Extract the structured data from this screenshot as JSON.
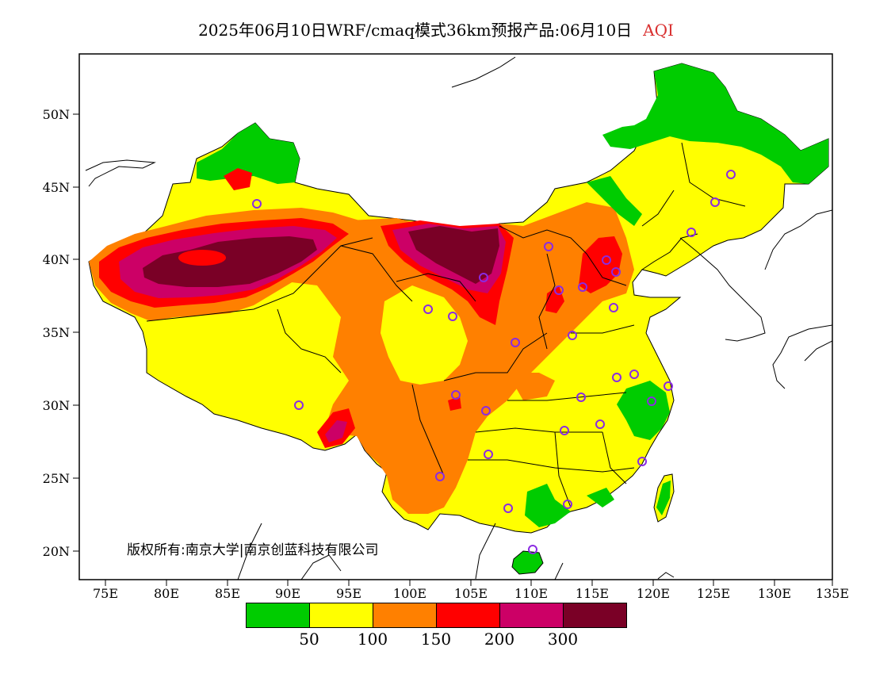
{
  "title": {
    "text": "2025年06月10日WRF/cmaq模式36km预报产品:06月10日",
    "variable": "AQI",
    "variable_color": "#d93030"
  },
  "copyright": "版权所有:南京大学|南京创蓝科技有限公司",
  "axes": {
    "lon_labels": [
      "75E",
      "80E",
      "85E",
      "90E",
      "95E",
      "100E",
      "105E",
      "110E",
      "115E",
      "120E",
      "125E",
      "130E",
      "135E"
    ],
    "lat_labels": [
      "50N",
      "45N",
      "40N",
      "35N",
      "30N",
      "25N",
      "20N"
    ]
  },
  "legend": {
    "colors": [
      "#00cc00",
      "#ffff00",
      "#ff8000",
      "#ff0000",
      "#cc0066",
      "#7a0026"
    ],
    "labels": [
      "50",
      "100",
      "150",
      "200",
      "300"
    ]
  },
  "colors": {
    "good": "#00cc00",
    "moderate": "#ffff00",
    "usg": "#ff8000",
    "unhealthy": "#ff0000",
    "very_unhealthy": "#cc0066",
    "hazardous": "#7a0026",
    "station_marker": "#8a2be2"
  }
}
